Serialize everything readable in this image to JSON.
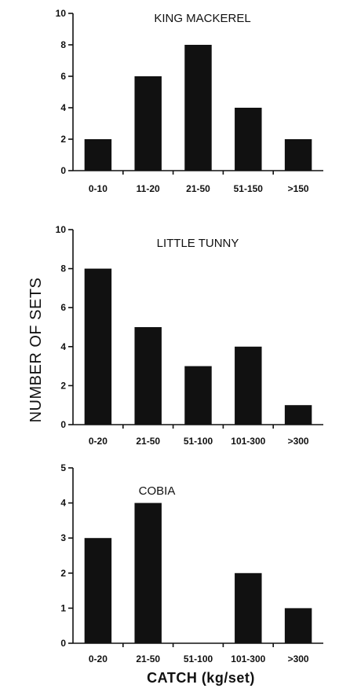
{
  "figure": {
    "ylabel": "NUMBER OF SETS",
    "xlabel": "CATCH (kg/set)"
  },
  "chart_data": [
    {
      "type": "bar",
      "title": "KING MACKEREL",
      "categories": [
        "0-10",
        "11-20",
        "21-50",
        "51-150",
        ">150"
      ],
      "values": [
        2,
        6,
        8,
        4,
        2
      ],
      "ylim": [
        0,
        10
      ],
      "yticks": [
        0,
        2,
        4,
        6,
        8,
        10
      ]
    },
    {
      "type": "bar",
      "title": "LITTLE TUNNY",
      "categories": [
        "0-20",
        "21-50",
        "51-100",
        "101-300",
        ">300"
      ],
      "values": [
        8,
        5,
        3,
        4,
        1
      ],
      "ylim": [
        0,
        10
      ],
      "yticks": [
        0,
        2,
        4,
        6,
        8,
        10
      ]
    },
    {
      "type": "bar",
      "title": "COBIA",
      "categories": [
        "0-20",
        "21-50",
        "51-100",
        "101-300",
        ">300"
      ],
      "values": [
        3,
        4,
        0,
        2,
        1
      ],
      "ylim": [
        0,
        5
      ],
      "yticks": [
        0,
        1,
        2,
        3,
        4,
        5
      ]
    }
  ]
}
